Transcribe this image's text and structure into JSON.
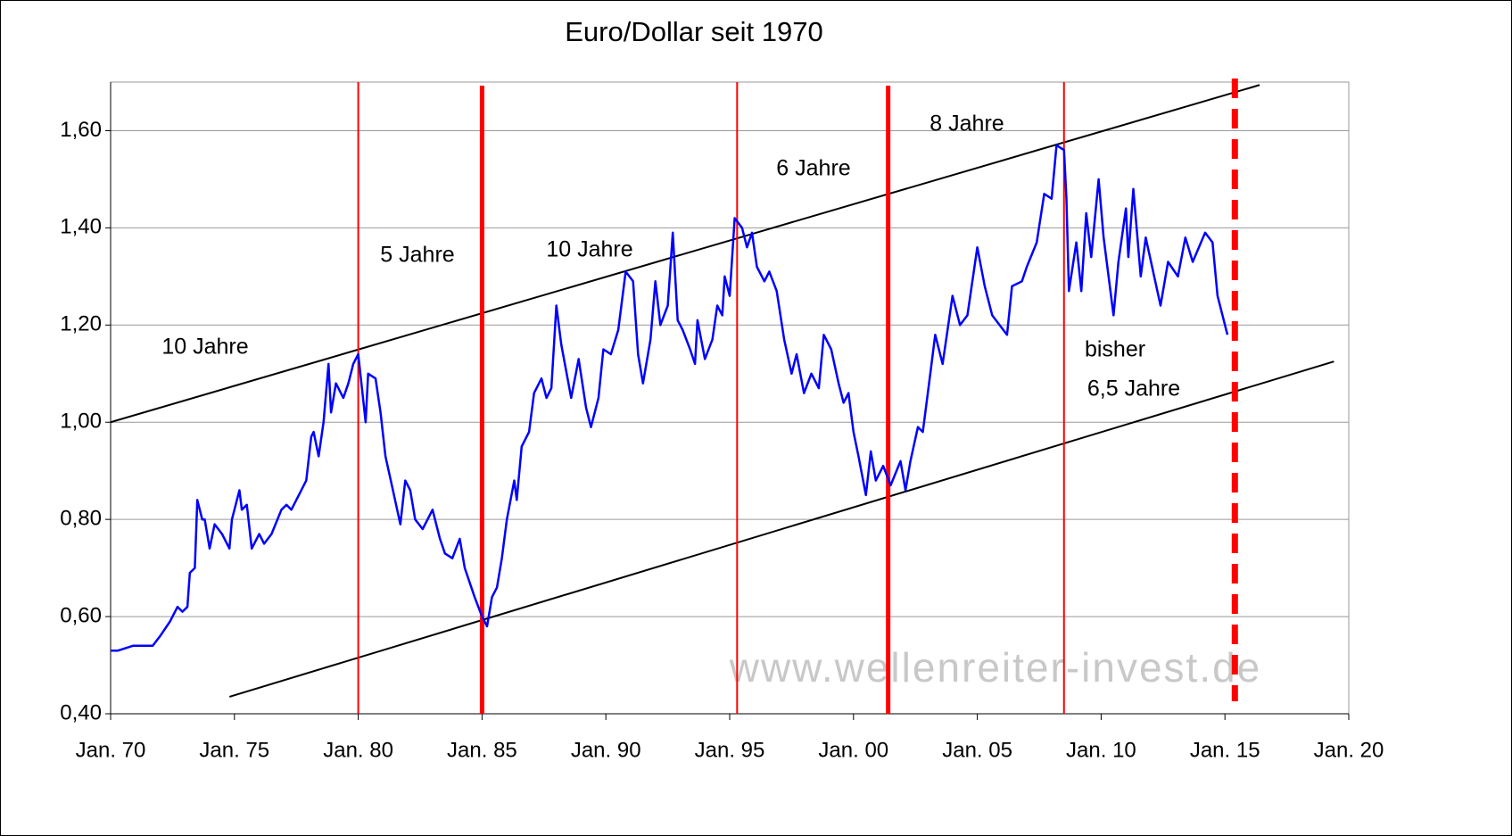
{
  "chart_data": {
    "type": "line",
    "title": "Euro/Dollar seit 1970",
    "color": "#0000ff",
    "x": [
      1970.0,
      1970.3,
      1970.9,
      1971.5,
      1971.7,
      1972.0,
      1972.4,
      1972.7,
      1972.9,
      1973.1,
      1973.2,
      1973.4,
      1973.5,
      1973.7,
      1973.8,
      1974.0,
      1974.2,
      1974.5,
      1974.8,
      1974.9,
      1975.2,
      1975.3,
      1975.5,
      1975.7,
      1976.0,
      1976.2,
      1976.5,
      1976.9,
      1977.1,
      1977.3,
      1977.6,
      1977.9,
      1978.1,
      1978.2,
      1978.4,
      1978.6,
      1978.8,
      1978.9,
      1979.1,
      1979.4,
      1979.6,
      1979.8,
      1980.0,
      1980.3,
      1980.4,
      1980.7,
      1980.9,
      1981.1,
      1981.4,
      1981.7,
      1981.9,
      1982.1,
      1982.3,
      1982.6,
      1983.0,
      1983.3,
      1983.5,
      1983.8,
      1984.1,
      1984.3,
      1984.7,
      1985.0,
      1985.2,
      1985.4,
      1985.6,
      1985.8,
      1986.0,
      1986.3,
      1986.4,
      1986.6,
      1986.9,
      1987.1,
      1987.4,
      1987.6,
      1987.8,
      1988.0,
      1988.2,
      1988.6,
      1988.9,
      1989.2,
      1989.4,
      1989.7,
      1989.9,
      1990.2,
      1990.5,
      1990.8,
      1991.1,
      1991.3,
      1991.5,
      1991.8,
      1992.0,
      1992.2,
      1992.5,
      1992.7,
      1992.9,
      1993.1,
      1993.4,
      1993.6,
      1993.7,
      1994.0,
      1994.3,
      1994.5,
      1994.7,
      1994.8,
      1995.0,
      1995.2,
      1995.5,
      1995.7,
      1995.9,
      1996.1,
      1996.4,
      1996.6,
      1996.9,
      1997.2,
      1997.5,
      1997.7,
      1998.0,
      1998.3,
      1998.6,
      1998.8,
      1999.1,
      1999.4,
      1999.6,
      1999.8,
      2000.0,
      2000.2,
      2000.5,
      2000.7,
      2000.9,
      2001.2,
      2001.5,
      2001.9,
      2002.1,
      2002.3,
      2002.6,
      2002.8,
      2003.1,
      2003.3,
      2003.6,
      2004.0,
      2004.3,
      2004.6,
      2005.0,
      2005.3,
      2005.6,
      2006.2,
      2006.4,
      2006.8,
      2007.0,
      2007.4,
      2007.7,
      2008.0,
      2008.2,
      2008.5,
      2008.6,
      2008.7,
      2009.0,
      2009.2,
      2009.4,
      2009.6,
      2009.9,
      2010.1,
      2010.5,
      2010.7,
      2011.0,
      2011.1,
      2011.3,
      2011.6,
      2011.8,
      2012.4,
      2012.7,
      2013.1,
      2013.4,
      2013.7,
      2014.2,
      2014.5,
      2014.7,
      2015.1
    ],
    "values": [
      0.53,
      0.53,
      0.54,
      0.54,
      0.54,
      0.56,
      0.59,
      0.62,
      0.61,
      0.62,
      0.69,
      0.7,
      0.84,
      0.8,
      0.8,
      0.74,
      0.79,
      0.77,
      0.74,
      0.8,
      0.86,
      0.82,
      0.83,
      0.74,
      0.77,
      0.75,
      0.77,
      0.82,
      0.83,
      0.82,
      0.85,
      0.88,
      0.97,
      0.98,
      0.93,
      1.0,
      1.12,
      1.02,
      1.08,
      1.05,
      1.08,
      1.12,
      1.14,
      1.0,
      1.1,
      1.09,
      1.02,
      0.93,
      0.86,
      0.79,
      0.88,
      0.86,
      0.8,
      0.78,
      0.82,
      0.76,
      0.73,
      0.72,
      0.76,
      0.7,
      0.64,
      0.6,
      0.58,
      0.64,
      0.66,
      0.72,
      0.8,
      0.88,
      0.84,
      0.95,
      0.98,
      1.06,
      1.09,
      1.05,
      1.07,
      1.24,
      1.16,
      1.05,
      1.13,
      1.03,
      0.99,
      1.05,
      1.15,
      1.14,
      1.19,
      1.31,
      1.29,
      1.14,
      1.08,
      1.17,
      1.29,
      1.2,
      1.24,
      1.39,
      1.21,
      1.19,
      1.15,
      1.12,
      1.21,
      1.13,
      1.17,
      1.24,
      1.22,
      1.3,
      1.26,
      1.42,
      1.4,
      1.36,
      1.39,
      1.32,
      1.29,
      1.31,
      1.27,
      1.17,
      1.1,
      1.14,
      1.06,
      1.1,
      1.07,
      1.18,
      1.15,
      1.08,
      1.04,
      1.06,
      0.98,
      0.93,
      0.85,
      0.94,
      0.88,
      0.91,
      0.87,
      0.92,
      0.86,
      0.92,
      0.99,
      0.98,
      1.1,
      1.18,
      1.12,
      1.26,
      1.2,
      1.22,
      1.36,
      1.28,
      1.22,
      1.18,
      1.28,
      1.29,
      1.32,
      1.37,
      1.47,
      1.46,
      1.57,
      1.56,
      1.46,
      1.27,
      1.37,
      1.27,
      1.43,
      1.34,
      1.5,
      1.38,
      1.22,
      1.33,
      1.44,
      1.34,
      1.48,
      1.3,
      1.38,
      1.24,
      1.33,
      1.3,
      1.38,
      1.33,
      1.39,
      1.37,
      1.26,
      1.18
    ],
    "xlim": [
      1970,
      2020
    ],
    "xticks": [
      {
        "value": 1970,
        "label": "Jan. 70"
      },
      {
        "value": 1975,
        "label": "Jan. 75"
      },
      {
        "value": 1980,
        "label": "Jan. 80"
      },
      {
        "value": 1985,
        "label": "Jan. 85"
      },
      {
        "value": 1990,
        "label": "Jan. 90"
      },
      {
        "value": 1995,
        "label": "Jan. 95"
      },
      {
        "value": 2000,
        "label": "Jan. 00"
      },
      {
        "value": 2005,
        "label": "Jan. 05"
      },
      {
        "value": 2010,
        "label": "Jan. 10"
      },
      {
        "value": 2015,
        "label": "Jan. 15"
      },
      {
        "value": 2020,
        "label": "Jan. 20"
      }
    ],
    "ylim": [
      0.4,
      1.7
    ],
    "yticks": [
      {
        "value": 0.4,
        "label": "0,40"
      },
      {
        "value": 0.6,
        "label": "0,60"
      },
      {
        "value": 0.8,
        "label": "0,80"
      },
      {
        "value": 1.0,
        "label": "1,00"
      },
      {
        "value": 1.2,
        "label": "1,20"
      },
      {
        "value": 1.4,
        "label": "1,40"
      },
      {
        "value": 1.6,
        "label": "1,60"
      }
    ],
    "grid": true,
    "vline_color": "#ff0000",
    "vlines": [
      {
        "x": 1980.0,
        "style": "thin"
      },
      {
        "x": 1985.0,
        "style": "thick"
      },
      {
        "x": 1995.3,
        "style": "thin"
      },
      {
        "x": 2001.4,
        "style": "thick"
      },
      {
        "x": 2008.5,
        "style": "thin"
      },
      {
        "x": 2015.4,
        "style": "dashed"
      }
    ],
    "trendline_color": "#000000",
    "trendlines": [
      {
        "x": [
          1970.0,
          2016.4
        ],
        "values": [
          1.0,
          1.694
        ]
      },
      {
        "x": [
          1974.8,
          2019.4
        ],
        "values": [
          0.435,
          1.125
        ]
      }
    ],
    "annotations": [
      "10 Jahre",
      "5 Jahre",
      "10 Jahre",
      "6 Jahre",
      "8 Jahre",
      "bisher",
      "6,5 Jahre"
    ],
    "watermark": "www.wellenreiter-invest.de"
  }
}
